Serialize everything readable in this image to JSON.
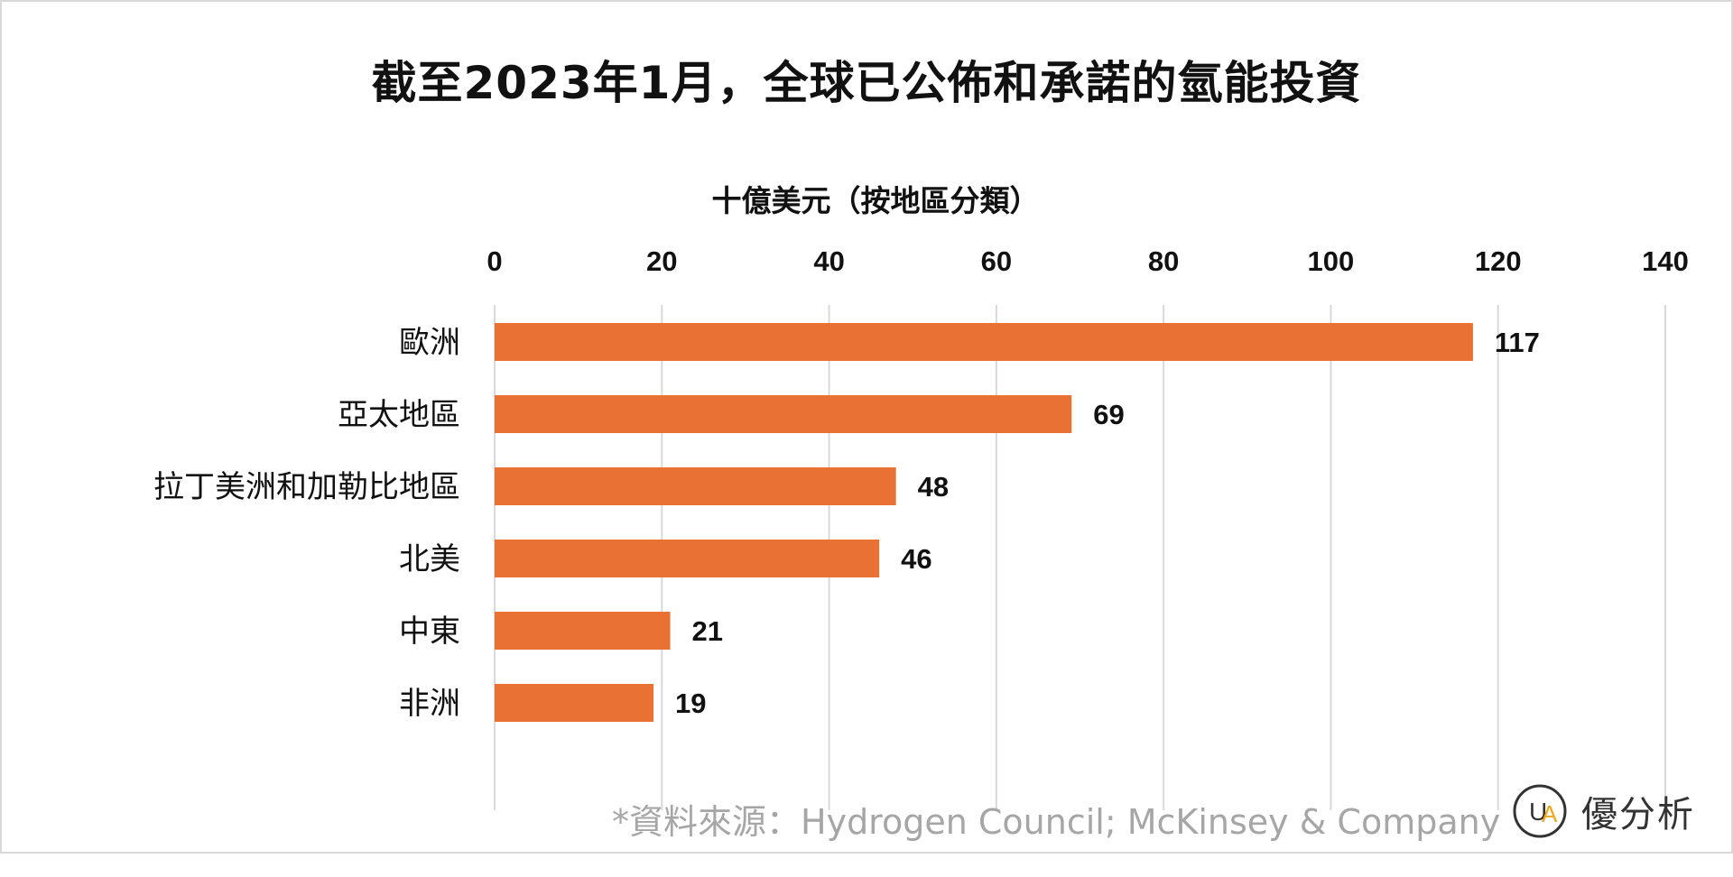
{
  "colors": {
    "bar": "#EA7134",
    "grid": "#D9D9D9",
    "text": "#111111",
    "source": "#A6A6A6",
    "logo_accent": "#F2A51C",
    "logo_dark": "#333333"
  },
  "chart_data": {
    "type": "bar",
    "orientation": "horizontal",
    "title": "截至2023年1月，全球已公佈和承諾的氫能投資",
    "axis_title": "十億美元（按地區分類）",
    "xlim": [
      0,
      140
    ],
    "x_ticks": [
      "0",
      "20",
      "40",
      "60",
      "80",
      "100",
      "120",
      "140"
    ],
    "x_axis_position": "top",
    "grid": true,
    "categories": [
      "歐洲",
      "亞太地區",
      "拉丁美洲和加勒比地區",
      "北美",
      "中東",
      "非洲"
    ],
    "values": [
      117,
      69,
      48,
      46,
      21,
      19
    ],
    "data_labels": [
      "117",
      "69",
      "48",
      "46",
      "21",
      "19"
    ]
  },
  "source_note": "*資料來源：Hydrogen Council; McKinsey & Company",
  "brand": {
    "name": "優分析",
    "logo_letters": "UA",
    "icon": "ua-logo-icon"
  }
}
